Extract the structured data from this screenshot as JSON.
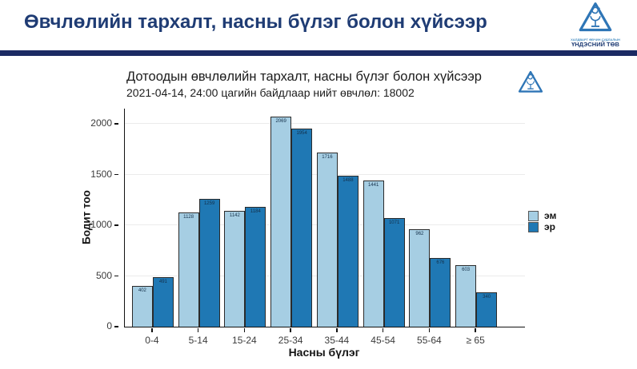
{
  "header": {
    "title": "Өвчлөлийн тархалт, насны бүлэг болон хүйсээр",
    "logo_text_line1": "ХАЛДВАРТ ӨВЧИН СУДЛАЛЫН",
    "logo_text_line2": "ҮНДЭСНИЙ ТӨВ"
  },
  "chart_data": {
    "type": "bar",
    "title": "Дотоодын өвчлөлийн тархалт, насны бүлэг болон хүйсээр",
    "subtitle": "2021-04-14, 24:00 цагийн байдлаар нийт өвчлөл: 18002",
    "xlabel": "Насны бүлэг",
    "ylabel": "Бодит тоо",
    "categories": [
      "0-4",
      "5-14",
      "15-24",
      "25-34",
      "35-44",
      "45-54",
      "55-64",
      "≥ 65"
    ],
    "series": [
      {
        "name": "эм",
        "color": "#a6cee3",
        "values": [
          402,
          1128,
          1142,
          2069,
          1716,
          1441,
          962,
          603
        ]
      },
      {
        "name": "эр",
        "color": "#1f78b4",
        "values": [
          491,
          1259,
          1184,
          1954,
          1488,
          1071,
          676,
          340
        ]
      }
    ],
    "yticks": [
      0,
      500,
      1000,
      1500,
      2000
    ],
    "ylim": [
      0,
      2150
    ],
    "legend_position": "right",
    "grid": true
  },
  "colors": {
    "header_title": "#1f3c74",
    "divider": "#1b2a63",
    "logo_blue": "#2e75b6",
    "female_bar": "#a6cee3",
    "male_bar": "#1f78b4"
  }
}
